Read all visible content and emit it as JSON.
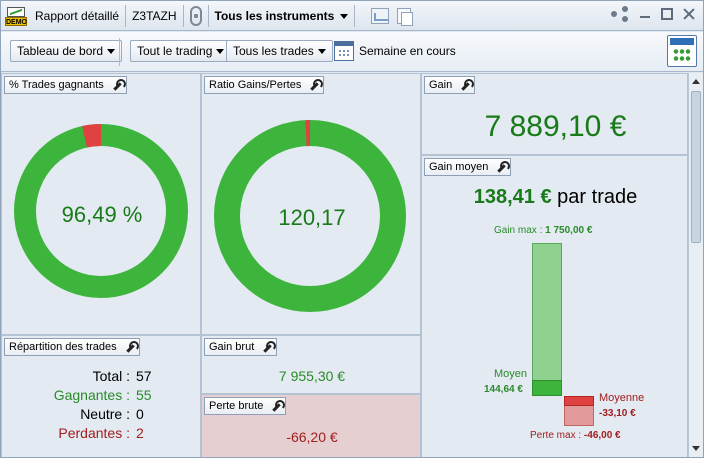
{
  "titlebar": {
    "report_label": "Rapport détaillé",
    "account_code": "Z3TAZH",
    "instrument_selector": "Tous les instruments",
    "demo_badge": "DEMO"
  },
  "toolbar": {
    "dashboard_dropdown": "Tableau de bord",
    "trading_dropdown": "Tout le trading",
    "trades_dropdown": "Tous les trades",
    "period_label": "Semaine en cours"
  },
  "panels": {
    "winning_trades": {
      "title": "% Trades gagnants",
      "value": "96,49 %",
      "fraction": 0.9649
    },
    "gain_loss_ratio": {
      "title": "Ratio Gains/Pertes",
      "value": "120,17",
      "fraction": 0.9918
    },
    "gain": {
      "title": "Gain",
      "value": "7 889,10 €"
    },
    "avg_gain": {
      "title": "Gain moyen",
      "value": "138,41 €",
      "suffix": "par trade",
      "max_gain_label": "Gain max :",
      "max_gain_value": "1 750,00 €",
      "avg_label": "Moyen",
      "avg_value": "144,64 €",
      "avg_loss_label": "Moyenne",
      "avg_loss_value": "-33,10 €",
      "max_loss_label": "Perte max :",
      "max_loss_value": "-46,00 €"
    },
    "distribution": {
      "title": "Répartition des trades",
      "total_label": "Total :",
      "total_value": "57",
      "winners_label": "Gagnantes :",
      "winners_value": "55",
      "neutral_label": "Neutre :",
      "neutral_value": "0",
      "losers_label": "Perdantes :",
      "losers_value": "2"
    },
    "gross_gain": {
      "title": "Gain brut",
      "value": "7 955,30 €"
    },
    "gross_loss": {
      "title": "Perte brute",
      "value": "-66,20 €"
    }
  },
  "colors": {
    "win": "#3db53d",
    "loss": "#e04141",
    "win_light": "#8fd18f",
    "loss_light": "#e39a9a"
  }
}
